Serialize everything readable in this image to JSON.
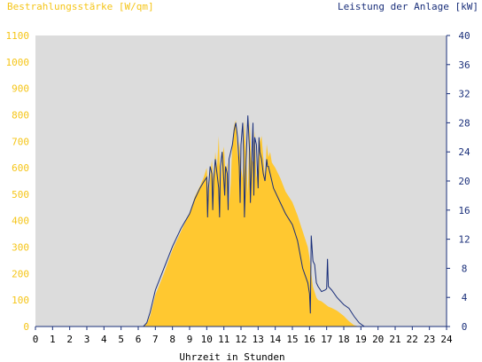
{
  "chart_data": {
    "type": "area",
    "left_axis_label": "Bestrahlungsstärke [W/qm]",
    "right_axis_label": "Leistung der Anlage [kW]",
    "xlabel": "Uhrzeit in Stunden",
    "x_ticks": [
      "0",
      "1",
      "2",
      "3",
      "4",
      "5",
      "6",
      "7",
      "8",
      "9",
      "10",
      "11",
      "12",
      "13",
      "14",
      "15",
      "16",
      "17",
      "18",
      "19",
      "20",
      "21",
      "22",
      "23",
      "24"
    ],
    "left_ticks": [
      "0",
      "100",
      "200",
      "300",
      "400",
      "500",
      "600",
      "700",
      "800",
      "900",
      "1000",
      "1100"
    ],
    "right_ticks": [
      "0",
      "4",
      "8",
      "12",
      "16",
      "20",
      "24",
      "28",
      "32",
      "36",
      "40"
    ],
    "xlim": [
      0,
      24
    ],
    "ylim_left": [
      0,
      1100
    ],
    "ylim_right": [
      0,
      40
    ],
    "grid": false,
    "colors": {
      "irradiance": "#ffc830",
      "power": "#1a2f7a",
      "plot_background": "#dcdcdc",
      "left_axis_text": "#f5c518",
      "right_axis_text": "#1a2f7a"
    },
    "series": [
      {
        "x": [
          0,
          6.3,
          6.5,
          6.7,
          7,
          7.5,
          8,
          8.5,
          9,
          9.3,
          9.6,
          9.8,
          10,
          10.1,
          10.2,
          10.3,
          10.4,
          10.5,
          10.6,
          10.7,
          10.8,
          10.9,
          11,
          11.1,
          11.2,
          11.3,
          11.4,
          11.5,
          11.6,
          11.7,
          11.8,
          11.9,
          12,
          12.1,
          12.2,
          12.3,
          12.4,
          12.5,
          12.6,
          12.7,
          12.8,
          12.9,
          13,
          13.1,
          13.2,
          13.3,
          13.4,
          13.5,
          13.6,
          13.7,
          13.8,
          13.9,
          14,
          14.3,
          14.6,
          15,
          15.3,
          15.6,
          15.9,
          16,
          16.1,
          16.2,
          16.3,
          16.4,
          16.5,
          16.7,
          16.9,
          17,
          17.1,
          17.3,
          17.6,
          18,
          18.3,
          18.6,
          18.9,
          19.2,
          24
        ],
        "values": [
          0,
          0,
          10,
          40,
          120,
          200,
          290,
          360,
          430,
          490,
          530,
          560,
          600,
          480,
          570,
          630,
          540,
          660,
          600,
          720,
          520,
          640,
          680,
          580,
          620,
          460,
          540,
          700,
          760,
          780,
          640,
          700,
          600,
          560,
          780,
          640,
          500,
          780,
          640,
          620,
          740,
          560,
          600,
          700,
          720,
          640,
          560,
          690,
          640,
          660,
          620,
          610,
          600,
          560,
          510,
          470,
          420,
          360,
          300,
          260,
          200,
          150,
          130,
          110,
          100,
          95,
          85,
          80,
          75,
          70,
          60,
          40,
          20,
          5,
          0,
          0,
          0
        ]
      },
      {
        "x": [
          0,
          6.3,
          6.5,
          6.7,
          7,
          7.5,
          8,
          8.5,
          9,
          9.3,
          9.6,
          9.8,
          10,
          10.05,
          10.1,
          10.2,
          10.3,
          10.35,
          10.4,
          10.5,
          10.6,
          10.7,
          10.75,
          10.8,
          10.9,
          11,
          11.05,
          11.1,
          11.2,
          11.25,
          11.3,
          11.4,
          11.5,
          11.6,
          11.7,
          11.8,
          11.9,
          11.95,
          12,
          12.1,
          12.15,
          12.2,
          12.3,
          12.4,
          12.5,
          12.55,
          12.6,
          12.7,
          12.75,
          12.8,
          12.9,
          13,
          13.05,
          13.1,
          13.2,
          13.3,
          13.4,
          13.5,
          13.55,
          13.6,
          13.7,
          13.8,
          13.9,
          14,
          14.3,
          14.6,
          15,
          15.3,
          15.6,
          15.9,
          16,
          16.05,
          16.1,
          16.2,
          16.3,
          16.4,
          16.5,
          16.7,
          16.9,
          17,
          17.05,
          17.1,
          17.3,
          17.6,
          18,
          18.3,
          18.6,
          18.9,
          19.2,
          24
        ],
        "values": [
          0,
          0,
          0.5,
          2,
          5,
          8,
          11,
          13.5,
          15.5,
          17.5,
          19,
          19.8,
          20.5,
          15,
          19,
          22,
          21,
          16,
          20,
          23,
          21,
          19,
          15,
          22,
          24,
          20,
          18,
          22,
          21,
          16,
          23,
          24,
          25,
          27,
          28,
          26,
          22,
          17,
          25,
          28,
          24,
          15,
          23,
          29,
          24,
          17,
          21,
          28,
          18,
          26,
          25,
          19,
          26,
          24,
          23,
          21,
          20,
          23,
          22,
          22,
          21,
          20,
          19,
          18.5,
          17,
          15.5,
          14,
          11.8,
          8,
          6,
          4.5,
          1.8,
          12.5,
          9,
          8.5,
          6,
          5.5,
          4.8,
          5,
          5.2,
          9.3,
          5.5,
          5,
          4,
          3,
          2.5,
          1.4,
          0.5,
          0,
          0
        ]
      }
    ]
  }
}
